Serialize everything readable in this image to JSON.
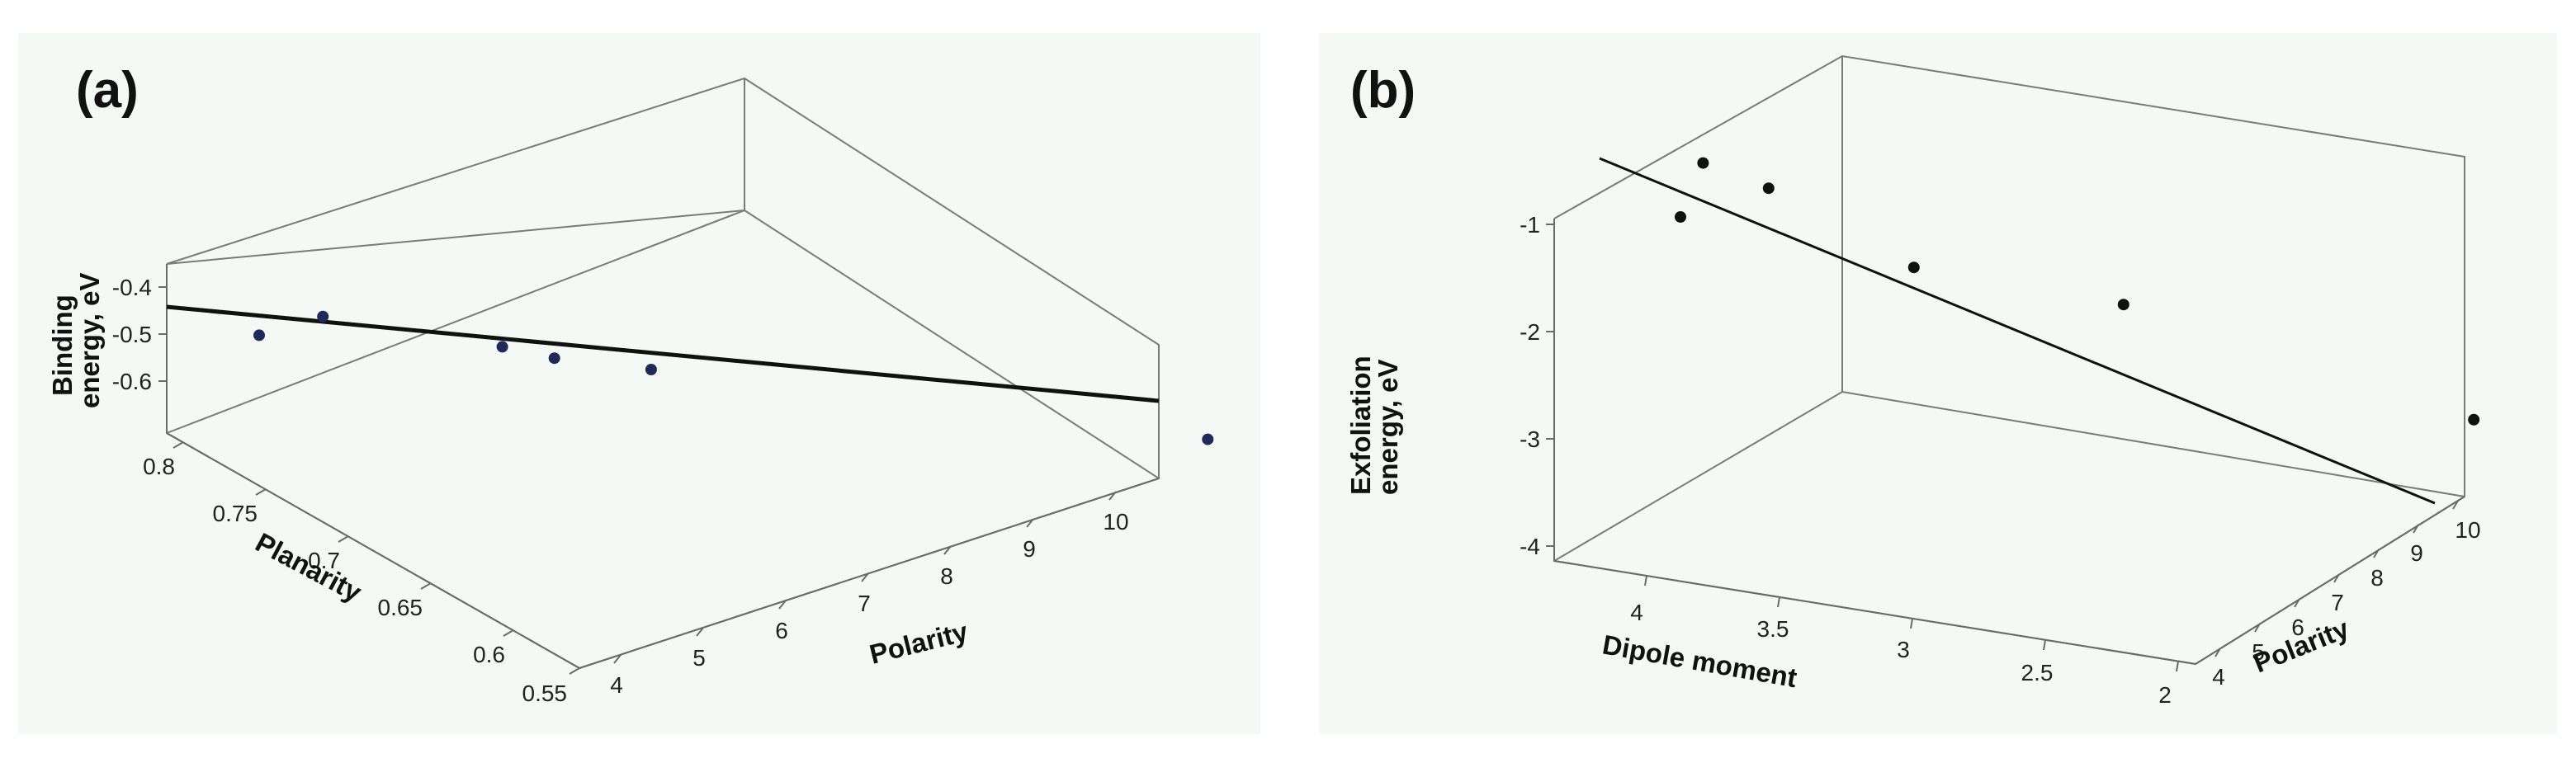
{
  "figure": {
    "panel_labels": [
      "(a)",
      "(b)"
    ]
  },
  "chart_data": [
    {
      "type": "scatter",
      "title": "",
      "panel_label": "(a)",
      "projection": "3d",
      "xlabel": "Polarity",
      "ylabel": "Planarity",
      "zlabel_line1": "Binding",
      "zlabel_line2": "energy, eV",
      "x_ticks": [
        "4",
        "5",
        "6",
        "7",
        "8",
        "9",
        "10"
      ],
      "y_ticks": [
        "0.8",
        "0.75",
        "0.7",
        "0.65",
        "0.6",
        "0.55"
      ],
      "z_ticks": [
        "-0.4",
        "-0.5",
        "-0.6"
      ],
      "points": [
        {
          "x": 4.5,
          "y": 0.78,
          "z": -0.5
        },
        {
          "x": 4.9,
          "y": 0.79,
          "z": -0.45
        },
        {
          "x": 6.0,
          "y": 0.8,
          "z": -0.49
        },
        {
          "x": 6.3,
          "y": 0.79,
          "z": -0.51
        },
        {
          "x": 6.9,
          "y": 0.8,
          "z": -0.52
        },
        {
          "x": 10.0,
          "y": 0.62,
          "z": -0.64
        }
      ],
      "fit_line": true,
      "grid": false
    },
    {
      "type": "scatter",
      "title": "",
      "panel_label": "(b)",
      "projection": "3d",
      "xlabel": "Dipole moment",
      "ylabel": "Polarity",
      "zlabel_line1": "Exfoliation",
      "zlabel_line2": "energy, eV",
      "x_ticks": [
        "4",
        "3.5",
        "3",
        "2.5",
        "2"
      ],
      "y_ticks": [
        "4",
        "5",
        "6",
        "7",
        "8",
        "9",
        "10"
      ],
      "z_ticks": [
        "-1",
        "-2",
        "-3",
        "-4"
      ],
      "points": [
        {
          "x": 3.6,
          "y": 4.3,
          "z": -0.4
        },
        {
          "x": 3.7,
          "y": 4.2,
          "z": -0.9
        },
        {
          "x": 3.5,
          "y": 4.8,
          "z": -0.7
        },
        {
          "x": 3.0,
          "y": 5.6,
          "z": -1.5
        },
        {
          "x": 2.5,
          "y": 7.0,
          "z": -2.0
        },
        {
          "x": 1.9,
          "y": 9.6,
          "z": -3.4
        }
      ],
      "fit_line": true,
      "grid": false
    }
  ]
}
